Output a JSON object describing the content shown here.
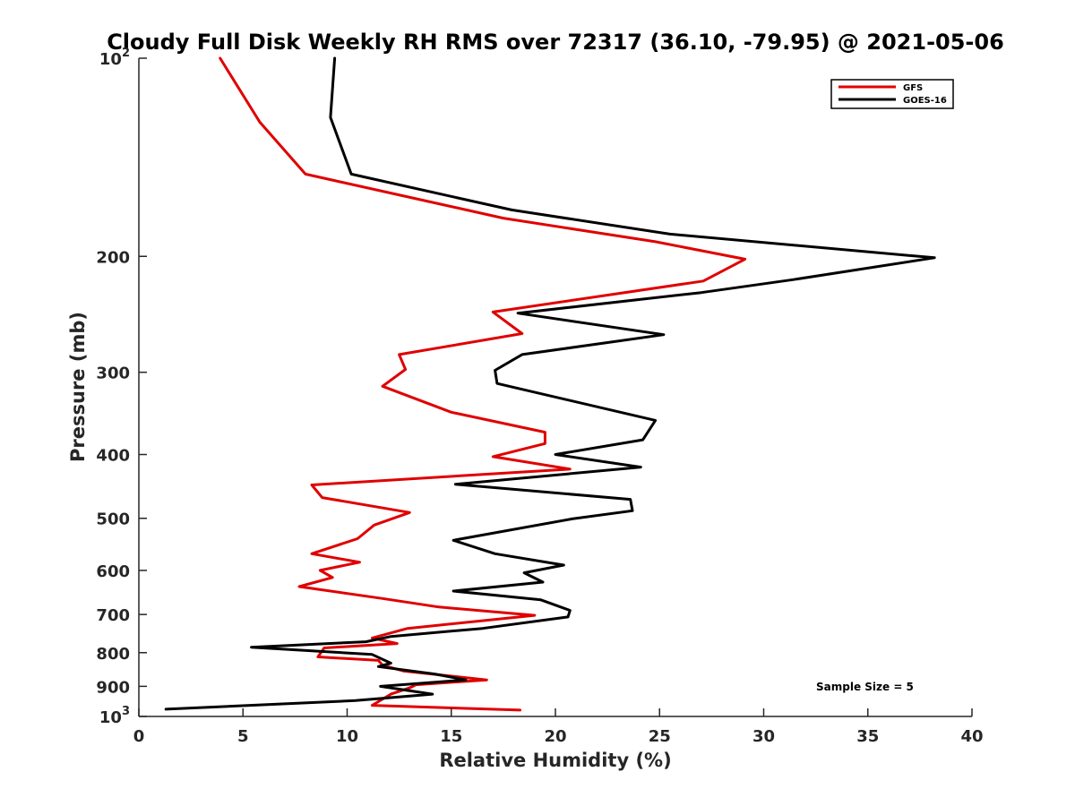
{
  "chart_data": {
    "type": "line",
    "title": "Cloudy Full Disk Weekly RH RMS over 72317 (36.10, -79.95) @ 2021-05-06",
    "xlabel": "Relative Humidity (%)",
    "ylabel": "Pressure (mb)",
    "xlim": [
      0,
      40
    ],
    "ylim": [
      100,
      1000
    ],
    "y_scale": "log",
    "y_reversed": true,
    "x_ticks": [
      0,
      5,
      10,
      15,
      20,
      25,
      30,
      35,
      40
    ],
    "x_tick_labels": [
      "0",
      "5",
      "10",
      "15",
      "20",
      "25",
      "30",
      "35",
      "40"
    ],
    "y_ticks": [
      100,
      200,
      300,
      400,
      500,
      600,
      700,
      800,
      900,
      1000
    ],
    "y_tick_labels": [
      {
        "base": "10",
        "exp": "2"
      },
      {
        "base": "200",
        "exp": ""
      },
      {
        "base": "300",
        "exp": ""
      },
      {
        "base": "400",
        "exp": ""
      },
      {
        "base": "500",
        "exp": ""
      },
      {
        "base": "600",
        "exp": ""
      },
      {
        "base": "700",
        "exp": ""
      },
      {
        "base": "800",
        "exp": ""
      },
      {
        "base": "900",
        "exp": ""
      },
      {
        "base": "10",
        "exp": "3"
      }
    ],
    "grid": false,
    "legend_position": "top-right",
    "annotation": "Sample Size = 5",
    "series": [
      {
        "name": "GFS",
        "color": "#e00000",
        "points": [
          [
            3.9,
            100
          ],
          [
            5.8,
            125
          ],
          [
            8.0,
            150
          ],
          [
            17.5,
            175
          ],
          [
            24.8,
            190
          ],
          [
            29.1,
            202
          ],
          [
            27.1,
            218
          ],
          [
            17.0,
            243
          ],
          [
            18.4,
            262
          ],
          [
            12.5,
            282
          ],
          [
            12.8,
            297
          ],
          [
            11.7,
            315
          ],
          [
            15.0,
            345
          ],
          [
            19.5,
            370
          ],
          [
            19.5,
            385
          ],
          [
            17.0,
            403
          ],
          [
            20.7,
            421
          ],
          [
            8.3,
            445
          ],
          [
            8.8,
            465
          ],
          [
            13.0,
            490
          ],
          [
            11.3,
            512
          ],
          [
            10.5,
            537
          ],
          [
            8.3,
            566
          ],
          [
            10.6,
            583
          ],
          [
            8.7,
            600
          ],
          [
            9.3,
            615
          ],
          [
            7.7,
            635
          ],
          [
            11.7,
            662
          ],
          [
            14.4,
            682
          ],
          [
            19.0,
            702
          ],
          [
            12.9,
            735
          ],
          [
            11.2,
            760
          ],
          [
            12.4,
            775
          ],
          [
            8.9,
            787
          ],
          [
            8.6,
            812
          ],
          [
            11.5,
            822
          ],
          [
            11.7,
            836
          ],
          [
            12.7,
            853
          ],
          [
            16.7,
            880
          ],
          [
            13.3,
            895
          ],
          [
            13.0,
            905
          ],
          [
            12.1,
            925
          ],
          [
            11.2,
            962
          ],
          [
            18.3,
            978
          ]
        ]
      },
      {
        "name": "GOES-16",
        "color": "#000000",
        "points": [
          [
            9.4,
            100
          ],
          [
            9.2,
            123
          ],
          [
            10.2,
            150
          ],
          [
            17.9,
            170
          ],
          [
            25.5,
            185
          ],
          [
            38.2,
            201
          ],
          [
            31.4,
            217
          ],
          [
            27.0,
            227
          ],
          [
            18.2,
            244
          ],
          [
            25.2,
            263
          ],
          [
            18.4,
            282
          ],
          [
            17.1,
            298
          ],
          [
            17.2,
            312
          ],
          [
            24.8,
            355
          ],
          [
            24.2,
            380
          ],
          [
            20.0,
            400
          ],
          [
            24.1,
            418
          ],
          [
            15.2,
            444
          ],
          [
            23.6,
            468
          ],
          [
            23.7,
            487
          ],
          [
            20.8,
            501
          ],
          [
            15.1,
            540
          ],
          [
            17.1,
            566
          ],
          [
            20.4,
            589
          ],
          [
            18.5,
            605
          ],
          [
            19.4,
            625
          ],
          [
            15.1,
            645
          ],
          [
            19.3,
            665
          ],
          [
            20.7,
            690
          ],
          [
            20.6,
            706
          ],
          [
            16.5,
            735
          ],
          [
            12.1,
            756
          ],
          [
            10.9,
            770
          ],
          [
            5.4,
            785
          ],
          [
            11.2,
            805
          ],
          [
            12.1,
            830
          ],
          [
            11.5,
            840
          ],
          [
            14.2,
            862
          ],
          [
            15.7,
            880
          ],
          [
            11.6,
            900
          ],
          [
            14.1,
            925
          ],
          [
            10.4,
            946
          ],
          [
            1.3,
            975
          ]
        ]
      }
    ]
  }
}
